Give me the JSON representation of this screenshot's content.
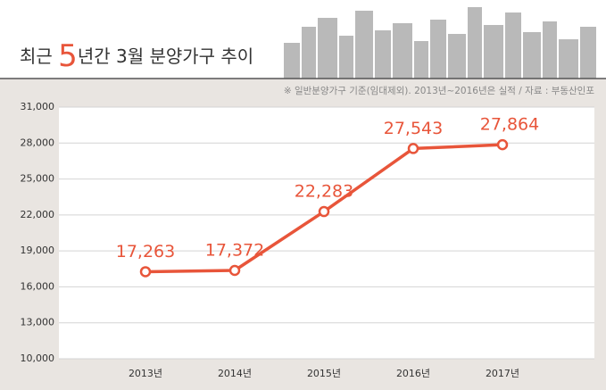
{
  "chart_data": {
    "type": "line",
    "title": {
      "prefix": "최근 ",
      "highlight": "5",
      "suffix": "년간 3월 분양가구 추이"
    },
    "note": "※ 일반분양가구 기준(임대제외). 2013년~2016년은 실적 / 자료 : 부동산인포",
    "categories": [
      "2013년",
      "2014년",
      "2015년",
      "2016년",
      "2017년"
    ],
    "series": [
      {
        "color": "#e8553a",
        "values": [
          17263,
          17372,
          22283,
          27543,
          27864
        ],
        "value_labels": [
          "17,263",
          "17,372",
          "22,283",
          "27,543",
          "27,864"
        ]
      }
    ],
    "ylim": [
      10000,
      31000
    ],
    "yticks": [
      {
        "value": 10000,
        "label": "10,000"
      },
      {
        "value": 13000,
        "label": "13,000"
      },
      {
        "value": 16000,
        "label": "16,000"
      },
      {
        "value": 19000,
        "label": "19,000"
      },
      {
        "value": 22000,
        "label": "22,000"
      },
      {
        "value": 25000,
        "label": "25,000"
      },
      {
        "value": 28000,
        "label": "28,000"
      },
      {
        "value": 31000,
        "label": "31,000"
      }
    ],
    "grid": true
  }
}
